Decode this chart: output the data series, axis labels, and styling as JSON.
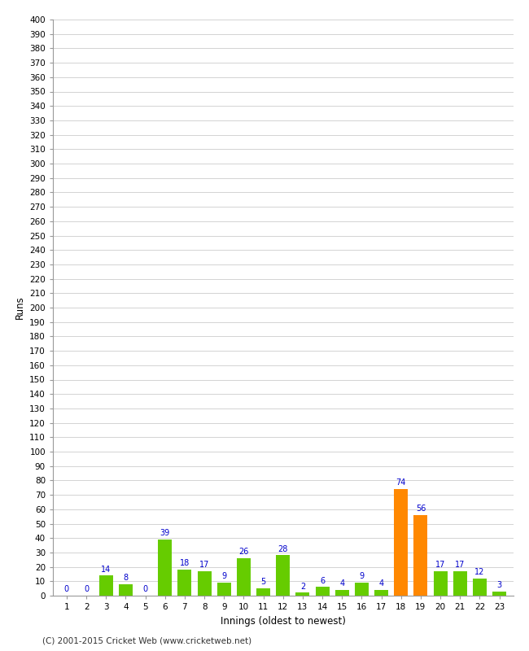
{
  "title": "",
  "xlabel": "Innings (oldest to newest)",
  "ylabel": "Runs",
  "categories": [
    1,
    2,
    3,
    4,
    5,
    6,
    7,
    8,
    9,
    10,
    11,
    12,
    13,
    14,
    15,
    16,
    17,
    18,
    19,
    20,
    21,
    22,
    23
  ],
  "values": [
    0,
    0,
    14,
    8,
    0,
    39,
    18,
    17,
    9,
    26,
    5,
    28,
    2,
    6,
    4,
    9,
    4,
    74,
    56,
    17,
    17,
    12,
    3
  ],
  "bar_colors": [
    "#66cc00",
    "#66cc00",
    "#66cc00",
    "#66cc00",
    "#66cc00",
    "#66cc00",
    "#66cc00",
    "#66cc00",
    "#66cc00",
    "#66cc00",
    "#66cc00",
    "#66cc00",
    "#66cc00",
    "#66cc00",
    "#66cc00",
    "#66cc00",
    "#66cc00",
    "#ff8800",
    "#ff8800",
    "#66cc00",
    "#66cc00",
    "#66cc00",
    "#66cc00"
  ],
  "ylim": [
    0,
    400
  ],
  "yticks": [
    0,
    10,
    20,
    30,
    40,
    50,
    60,
    70,
    80,
    90,
    100,
    110,
    120,
    130,
    140,
    150,
    160,
    170,
    180,
    190,
    200,
    210,
    220,
    230,
    240,
    250,
    260,
    270,
    280,
    290,
    300,
    310,
    320,
    330,
    340,
    350,
    360,
    370,
    380,
    390,
    400
  ],
  "label_color": "#0000cc",
  "background_color": "#ffffff",
  "grid_color": "#cccccc",
  "footer": "(C) 2001-2015 Cricket Web (www.cricketweb.net)"
}
